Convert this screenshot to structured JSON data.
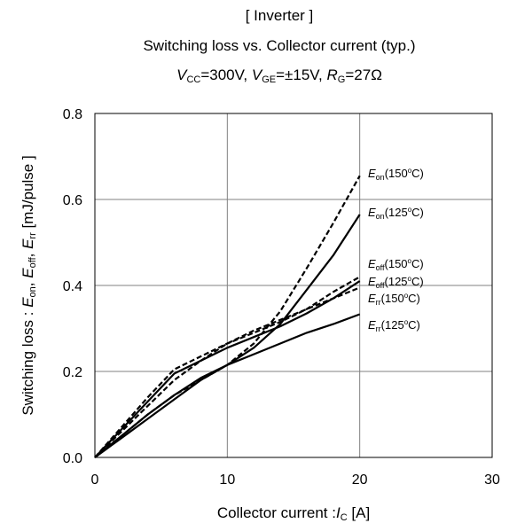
{
  "title": {
    "line1": "[ Inverter ]",
    "line2": "Switching loss vs. Collector current (typ.)",
    "cond_v": "V",
    "cond_v_sub": "CC",
    "cond_v_val": "=300V,",
    "cond_vge": "V",
    "cond_vge_sub": "GE",
    "cond_vge_val": "=±15V,",
    "cond_rg": "R",
    "cond_rg_sub": "G",
    "cond_rg_val": "=27Ω"
  },
  "chart_data": {
    "type": "line",
    "title": "Switching loss vs. Collector current (typ.)",
    "xlabel": "Collector current :I_C [A]",
    "ylabel": "Switching loss : E_on, E_off, E_rr [mJ/pulse]",
    "xlim": [
      0,
      30
    ],
    "ylim": [
      0,
      0.8
    ],
    "x_ticks": [
      "0",
      "10",
      "20",
      "30"
    ],
    "y_ticks": [
      "0.0",
      "0.2",
      "0.4",
      "0.6",
      "0.8"
    ],
    "grid": true,
    "series": [
      {
        "name": "Eon(150°C)",
        "label_main": "E",
        "label_sub": "on",
        "label_temp": "(150",
        "label_deg": "o",
        "label_c": "C)",
        "style": "dashed",
        "x": [
          0,
          2,
          4,
          6,
          8,
          10,
          12,
          14,
          16,
          18,
          20
        ],
        "y": [
          0,
          0.05,
          0.1,
          0.145,
          0.18,
          0.215,
          0.265,
          0.34,
          0.44,
          0.545,
          0.655
        ]
      },
      {
        "name": "Eon(125°C)",
        "label_main": "E",
        "label_sub": "on",
        "label_temp": "(125",
        "label_deg": "o",
        "label_c": "C)",
        "style": "solid",
        "x": [
          0,
          2,
          4,
          6,
          8,
          10,
          12,
          14,
          16,
          18,
          20
        ],
        "y": [
          0,
          0.045,
          0.09,
          0.135,
          0.18,
          0.215,
          0.255,
          0.31,
          0.39,
          0.47,
          0.565
        ]
      },
      {
        "name": "Eoff(150°C)",
        "label_main": "E",
        "label_sub": "off",
        "label_temp": "(150",
        "label_deg": "o",
        "label_c": "C)",
        "style": "dashed",
        "x": [
          0,
          2,
          4,
          6,
          8,
          10,
          12,
          14,
          16,
          18,
          20
        ],
        "y": [
          0,
          0.07,
          0.14,
          0.205,
          0.235,
          0.265,
          0.29,
          0.315,
          0.345,
          0.385,
          0.42
        ]
      },
      {
        "name": "Eoff(125°C)",
        "label_main": "E",
        "label_sub": "off",
        "label_temp": "(125",
        "label_deg": "o",
        "label_c": "C)",
        "style": "solid",
        "x": [
          0,
          2,
          4,
          6,
          8,
          10,
          12,
          14,
          16,
          18,
          20
        ],
        "y": [
          0,
          0.065,
          0.13,
          0.195,
          0.225,
          0.255,
          0.28,
          0.305,
          0.335,
          0.37,
          0.41
        ]
      },
      {
        "name": "Err(150°C)",
        "label_main": "E",
        "label_sub": "rr",
        "label_temp": "(150",
        "label_deg": "o",
        "label_c": "C)",
        "style": "dashed",
        "x": [
          0,
          2,
          4,
          6,
          8,
          10,
          12,
          14,
          16,
          18,
          20
        ],
        "y": [
          0,
          0.06,
          0.12,
          0.18,
          0.225,
          0.265,
          0.295,
          0.32,
          0.345,
          0.37,
          0.395
        ]
      },
      {
        "name": "Err(125°C)",
        "label_main": "E",
        "label_sub": "rr",
        "label_temp": "(125",
        "label_deg": "o",
        "label_c": "C)",
        "style": "solid",
        "x": [
          0,
          2,
          4,
          6,
          8,
          10,
          12,
          14,
          16,
          18,
          20
        ],
        "y": [
          0,
          0.05,
          0.1,
          0.145,
          0.185,
          0.215,
          0.24,
          0.265,
          0.29,
          0.31,
          0.333
        ]
      }
    ]
  }
}
